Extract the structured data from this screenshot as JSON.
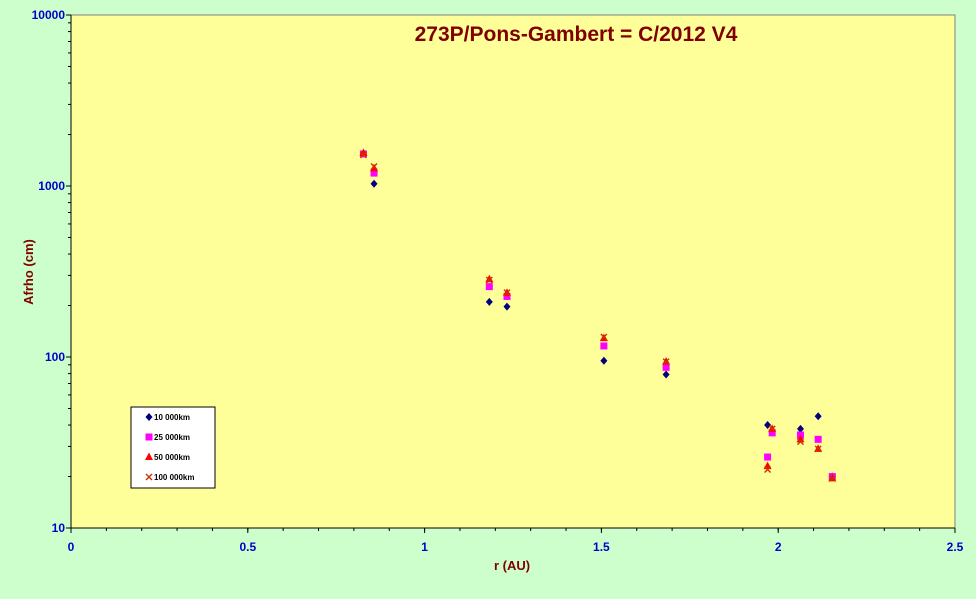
{
  "chart_data": {
    "type": "scatter",
    "title": "273P/Pons-Gambert = C/2012 V4",
    "xlabel": "r (AU)",
    "ylabel": "Afrho (cm)",
    "xlim": [
      0,
      2.5
    ],
    "ylim": [
      10,
      10000
    ],
    "y_scale": "log",
    "x_ticks": [
      "0",
      "0.5",
      "1",
      "1.5",
      "2",
      "2.5"
    ],
    "y_ticks": [
      "10",
      "100",
      "1000",
      "10000"
    ],
    "grid": false,
    "legend_position": "bottom-left",
    "background": "#ffff99",
    "series": [
      {
        "name": "10 000km",
        "marker": "diamond",
        "color": "#000080",
        "points": [
          [
            0.857,
            1030
          ],
          [
            1.183,
            210
          ],
          [
            1.233,
            197
          ],
          [
            1.507,
            95
          ],
          [
            1.683,
            79
          ],
          [
            1.97,
            40
          ],
          [
            2.063,
            38
          ],
          [
            2.113,
            45
          ],
          [
            2.153,
            20
          ]
        ]
      },
      {
        "name": "25 000km",
        "marker": "square",
        "color": "#ff00ff",
        "points": [
          [
            0.827,
            1540
          ],
          [
            0.857,
            1190
          ],
          [
            1.183,
            258
          ],
          [
            1.233,
            226
          ],
          [
            1.507,
            116
          ],
          [
            1.683,
            87
          ],
          [
            1.97,
            26
          ],
          [
            1.983,
            36
          ],
          [
            2.063,
            35
          ],
          [
            2.113,
            33
          ],
          [
            2.153,
            20
          ]
        ]
      },
      {
        "name": "50 000km",
        "marker": "triangle",
        "color": "#ff0000",
        "points": [
          [
            0.827,
            1560
          ],
          [
            0.857,
            1270
          ],
          [
            1.183,
            285
          ],
          [
            1.233,
            237
          ],
          [
            1.507,
            129
          ],
          [
            1.683,
            94
          ],
          [
            1.97,
            23
          ],
          [
            1.983,
            38
          ],
          [
            2.063,
            33
          ],
          [
            2.113,
            29
          ],
          [
            2.153,
            19.5
          ]
        ]
      },
      {
        "name": "100 000km",
        "marker": "x",
        "color": "#cc3300",
        "points": [
          [
            0.827,
            1520
          ],
          [
            0.857,
            1300
          ],
          [
            1.183,
            282
          ],
          [
            1.233,
            238
          ],
          [
            1.507,
            131
          ],
          [
            1.683,
            94
          ],
          [
            1.97,
            22
          ],
          [
            1.983,
            38
          ],
          [
            2.063,
            32
          ],
          [
            2.113,
            29
          ],
          [
            2.153,
            19.5
          ]
        ]
      }
    ]
  }
}
